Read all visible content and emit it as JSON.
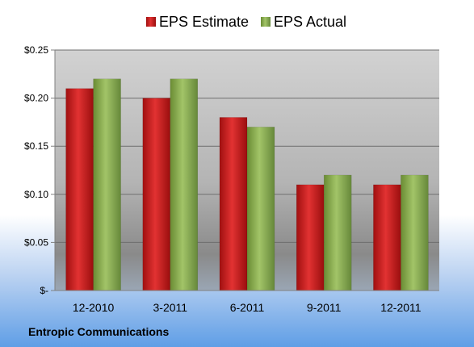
{
  "chart_data": {
    "type": "bar",
    "categories": [
      "12-2010",
      "3-2011",
      "6-2011",
      "9-2011",
      "12-2011"
    ],
    "series": [
      {
        "name": "EPS Estimate",
        "values": [
          0.21,
          0.2,
          0.18,
          0.11,
          0.11
        ],
        "color": "#cc1c1c"
      },
      {
        "name": "EPS Actual",
        "values": [
          0.22,
          0.22,
          0.17,
          0.12,
          0.12
        ],
        "color": "#8cb050"
      }
    ],
    "yticks": [
      {
        "value": 0,
        "label": "$-"
      },
      {
        "value": 0.05,
        "label": "$0.05"
      },
      {
        "value": 0.1,
        "label": "$0.10"
      },
      {
        "value": 0.15,
        "label": "$0.15"
      },
      {
        "value": 0.2,
        "label": "$0.20"
      },
      {
        "value": 0.25,
        "label": "$0.25"
      }
    ],
    "ylim": [
      0,
      0.25
    ],
    "grid": true,
    "legend": "top-center",
    "company": "Entropic Communications"
  }
}
